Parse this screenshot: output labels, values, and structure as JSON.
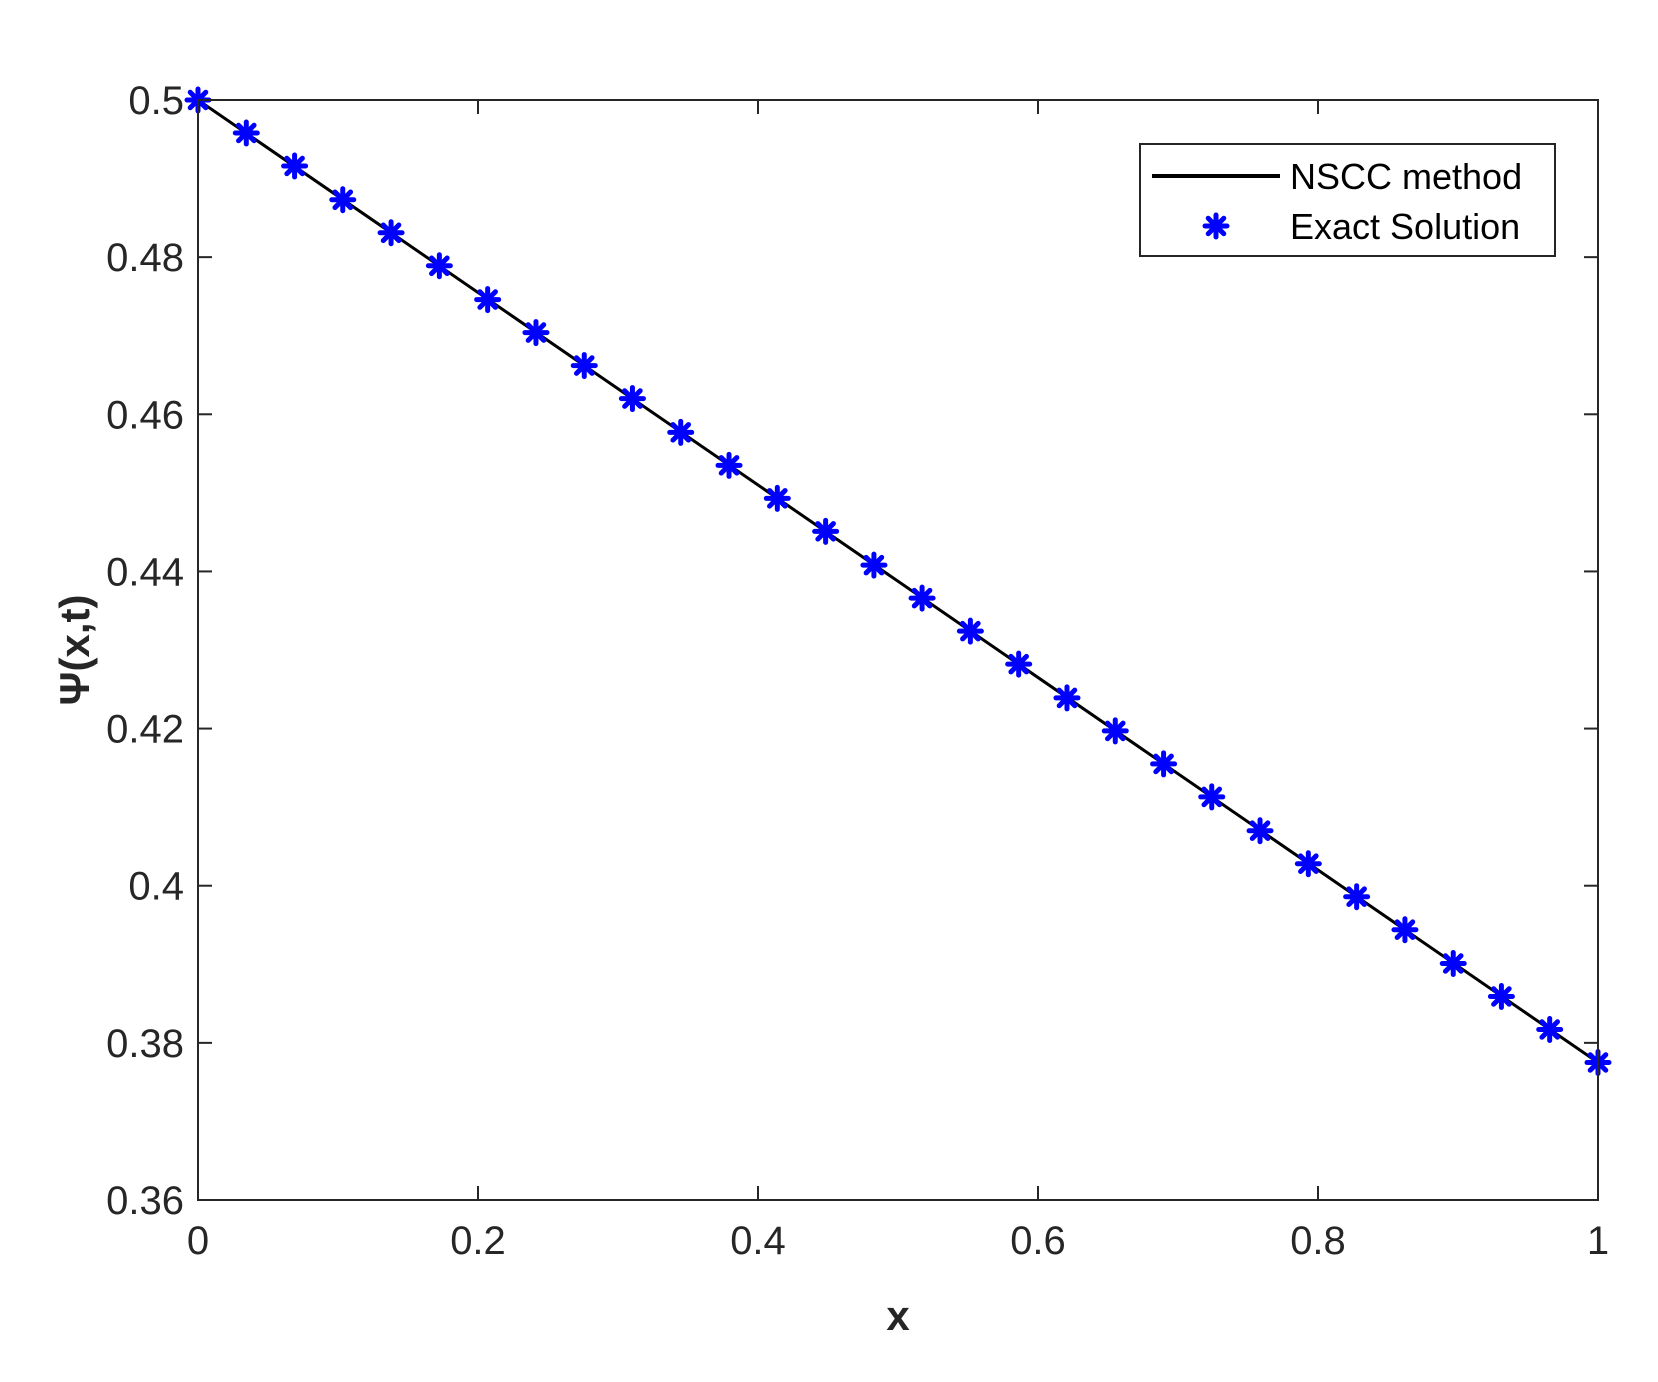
{
  "chart_data": {
    "type": "line",
    "title": "",
    "xlabel": "x",
    "ylabel": "Ψ(x,t)",
    "xlim": [
      0,
      1
    ],
    "ylim": [
      0.36,
      0.5
    ],
    "xticks": [
      0,
      0.2,
      0.4,
      0.6,
      0.8,
      1
    ],
    "xtick_labels": [
      "0",
      "0.2",
      "0.4",
      "0.6",
      "0.8",
      "1"
    ],
    "yticks": [
      0.36,
      0.38,
      0.4,
      0.42,
      0.44,
      0.46,
      0.48,
      0.5
    ],
    "ytick_labels": [
      "0.36",
      "0.38",
      "0.4",
      "0.42",
      "0.44",
      "0.46",
      "0.48",
      "0.5"
    ],
    "grid": false,
    "legend_position": "top-right",
    "series": [
      {
        "name": "NSCC method",
        "style": "line",
        "color": "#000000",
        "x": [
          0,
          1
        ],
        "y": [
          0.5,
          0.3775
        ]
      },
      {
        "name": "Exact Solution",
        "style": "markers",
        "marker": "asterisk",
        "color": "#0000ff",
        "x": [
          0,
          0.0345,
          0.069,
          0.1034,
          0.1379,
          0.1724,
          0.2069,
          0.2414,
          0.2759,
          0.3103,
          0.3448,
          0.3793,
          0.4138,
          0.4483,
          0.4828,
          0.5172,
          0.5517,
          0.5862,
          0.6207,
          0.6552,
          0.6897,
          0.7241,
          0.7586,
          0.7931,
          0.8276,
          0.8621,
          0.8966,
          0.931,
          0.9655,
          1
        ],
        "y": [
          0.5,
          0.4958,
          0.4916,
          0.4873,
          0.4831,
          0.4789,
          0.4746,
          0.4704,
          0.4662,
          0.462,
          0.4577,
          0.4535,
          0.4493,
          0.4451,
          0.4408,
          0.4366,
          0.4324,
          0.4282,
          0.4239,
          0.4197,
          0.4155,
          0.4113,
          0.407,
          0.4028,
          0.3986,
          0.3944,
          0.3901,
          0.3859,
          0.3817,
          0.3775
        ]
      }
    ]
  }
}
